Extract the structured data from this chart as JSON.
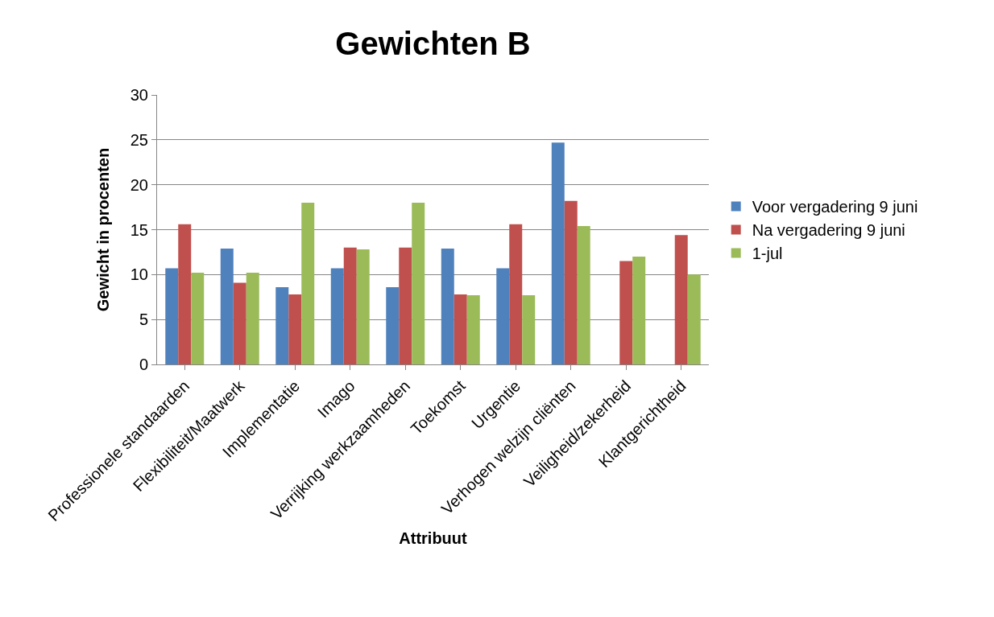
{
  "chart_data": {
    "type": "bar",
    "title": "Gewichten B",
    "xlabel": "Attribuut",
    "ylabel": "Gewicht in procenten",
    "categories": [
      "Professionele standaarden",
      "Flexibiliteit/Maatwerk",
      "Implementatie",
      "Imago",
      "Verrijking werkzaamheden",
      "Toekomst",
      "Urgentie",
      "Verhogen welzijn cliënten",
      "Veiligheid/zekerheid",
      "Klantgerichtheid"
    ],
    "series": [
      {
        "name": "Voor vergadering 9 juni",
        "color": "#4f81bd",
        "values": [
          10.7,
          12.9,
          8.6,
          10.7,
          8.6,
          12.9,
          10.7,
          24.7,
          null,
          null
        ]
      },
      {
        "name": "Na vergadering 9 juni",
        "color": "#c0504d",
        "values": [
          15.6,
          9.1,
          7.8,
          13.0,
          13.0,
          7.8,
          15.6,
          18.2,
          11.5,
          14.4
        ]
      },
      {
        "name": "1-jul",
        "color": "#9bbb59",
        "values": [
          10.2,
          10.2,
          18.0,
          12.8,
          18.0,
          7.7,
          7.7,
          15.4,
          12.0,
          10.0
        ]
      }
    ],
    "ylim": [
      0,
      30
    ],
    "yticks": [
      0,
      5,
      10,
      15,
      20,
      25,
      30
    ],
    "grid": "y",
    "legend": "right"
  }
}
